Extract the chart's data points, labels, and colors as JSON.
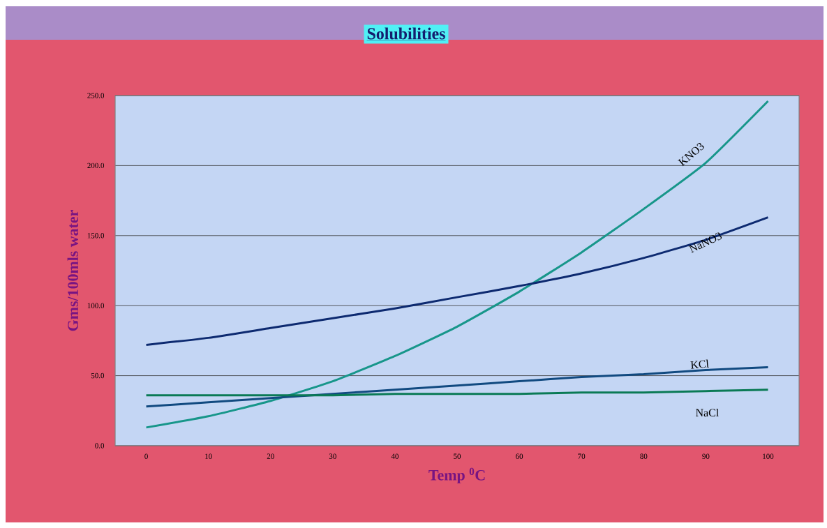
{
  "chart_data": {
    "type": "line",
    "title": "Solubilities",
    "xlabel": "Temp $^{0}$C",
    "ylabel": "Gms/100mls water",
    "categories": [
      "0",
      "10",
      "20",
      "30",
      "40",
      "50",
      "60",
      "70",
      "80",
      "90",
      "100"
    ],
    "series": [
      {
        "name": "KNO3",
        "color": "#17968a",
        "values": [
          13,
          21,
          32,
          46,
          64,
          85,
          110,
          138,
          169,
          202,
          246
        ]
      },
      {
        "name": "NaNO3",
        "color": "#0d2a70",
        "values": [
          72,
          77,
          84,
          91,
          98,
          106,
          114,
          123,
          134,
          147,
          163
        ]
      },
      {
        "name": "KCl",
        "color": "#114a80",
        "values": [
          28,
          31,
          34,
          37,
          40,
          43,
          46,
          49,
          51,
          54,
          56
        ]
      },
      {
        "name": "NaCl",
        "color": "#0a7a55",
        "values": [
          36,
          36,
          36,
          36,
          37,
          37,
          37,
          38,
          38,
          39,
          40
        ]
      }
    ],
    "ylim": [
      0,
      250
    ],
    "yticks": [
      {
        "value": 0,
        "label": "0.0"
      },
      {
        "value": 50,
        "label": "50.0"
      },
      {
        "value": 100,
        "label": "100.0"
      },
      {
        "value": 150,
        "label": "150.0"
      },
      {
        "value": 200,
        "label": "200.0"
      },
      {
        "value": 250,
        "label": "250.0"
      }
    ],
    "grid": "y",
    "marker": "none",
    "line_style": "solid"
  }
}
